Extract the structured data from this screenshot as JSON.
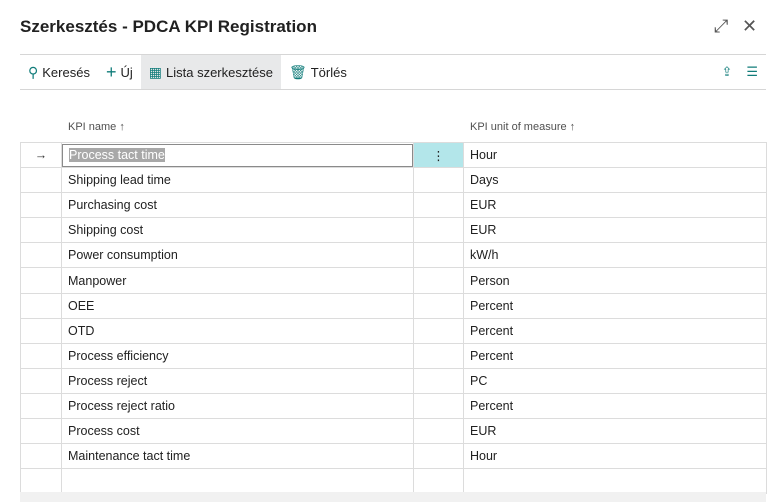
{
  "window": {
    "title": "Szerkesztés - PDCA KPI Registration",
    "expand_icon": "expand-icon",
    "close_icon": "close-icon"
  },
  "toolbar": {
    "search": "Keresés",
    "new": "Új",
    "edit_list": "Lista szerkesztése",
    "delete": "Törlés"
  },
  "columns": {
    "name": "KPI name",
    "uom": "KPI unit of measure",
    "sort": "↑"
  },
  "rows": [
    {
      "name": "Process tact time",
      "uom": "Hour"
    },
    {
      "name": "Shipping lead time",
      "uom": "Days"
    },
    {
      "name": "Purchasing cost",
      "uom": "EUR"
    },
    {
      "name": "Shipping cost",
      "uom": "EUR"
    },
    {
      "name": "Power consumption",
      "uom": "kW/h"
    },
    {
      "name": "Manpower",
      "uom": "Person"
    },
    {
      "name": "OEE",
      "uom": "Percent"
    },
    {
      "name": "OTD",
      "uom": "Percent"
    },
    {
      "name": "Process efficiency",
      "uom": "Percent"
    },
    {
      "name": "Process reject",
      "uom": "PC"
    },
    {
      "name": "Process reject ratio",
      "uom": "Percent"
    },
    {
      "name": "Process cost",
      "uom": "EUR"
    },
    {
      "name": "Maintenance tact time",
      "uom": "Hour"
    }
  ],
  "colors": {
    "accent": "#107c7a",
    "selected_cell": "#b3e6ea"
  }
}
